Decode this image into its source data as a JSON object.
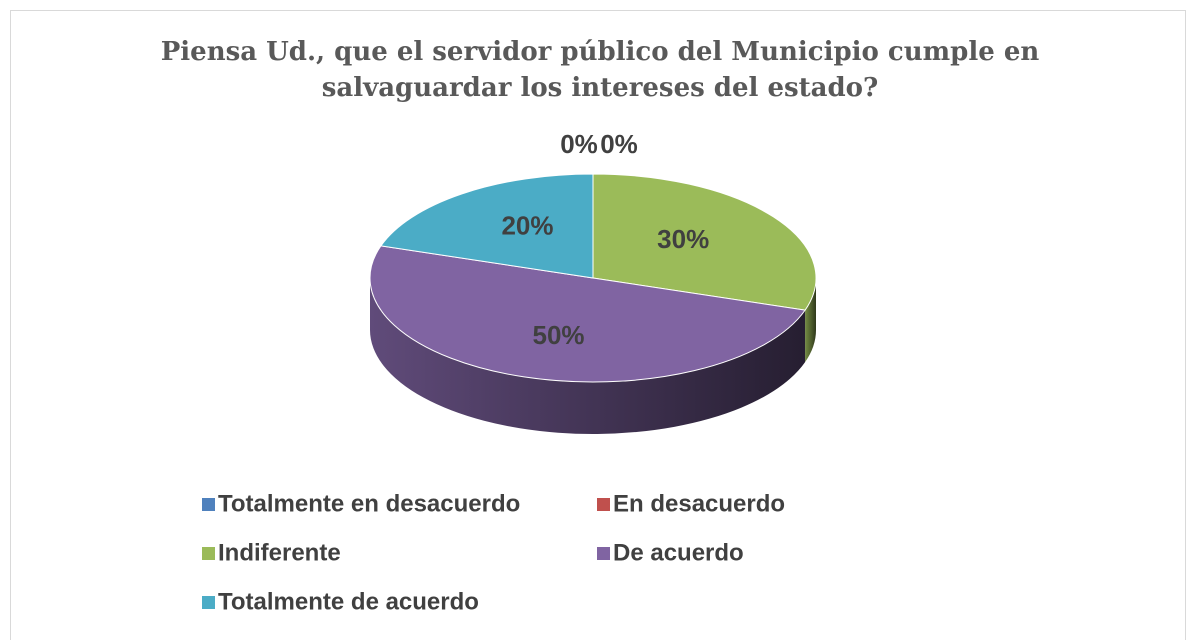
{
  "chart_data": {
    "type": "pie",
    "title": "Piensa Ud., que el servidor público del Municipio cumple en salvaguardar los intereses del estado?",
    "categories": [
      "Totalmente en desacuerdo",
      "En desacuerdo",
      "Indiferente",
      "De acuerdo",
      "Totalmente de acuerdo"
    ],
    "values": [
      0,
      0,
      30,
      50,
      20
    ],
    "value_labels": [
      "0%",
      "0%",
      "30%",
      "50%",
      "20%"
    ],
    "colors": [
      "#4f81bd",
      "#c0504d",
      "#9bbb59",
      "#8064a2",
      "#4bacc6"
    ],
    "legend": "bottom"
  }
}
